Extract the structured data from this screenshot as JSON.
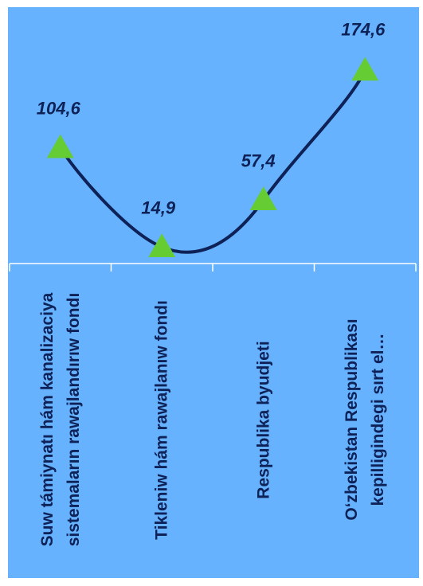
{
  "chart_data": {
    "type": "line",
    "categories": [
      "Suw támiynatı hám kanalizaciya sistemaların rawajlandırıw fondı",
      "Tikleniw hám rawajlanıw fondı",
      "Respublika byudjeti",
      "O‘zbekistan Respublikası kepilligindegi sırt el…"
    ],
    "values": [
      104.6,
      14.9,
      57.4,
      174.6
    ],
    "data_labels": [
      "104,6",
      "14,9",
      "57,4",
      "174,6"
    ],
    "title": "",
    "xlabel": "",
    "ylabel": "",
    "ylim": [
      0,
      185
    ],
    "grid": false,
    "legend": "none",
    "marker": "triangle",
    "colors": {
      "background": "#66b2ff",
      "line": "#0f2257",
      "marker": "#66cc33",
      "axis": "#ffffff",
      "text": "#0f2257"
    }
  }
}
